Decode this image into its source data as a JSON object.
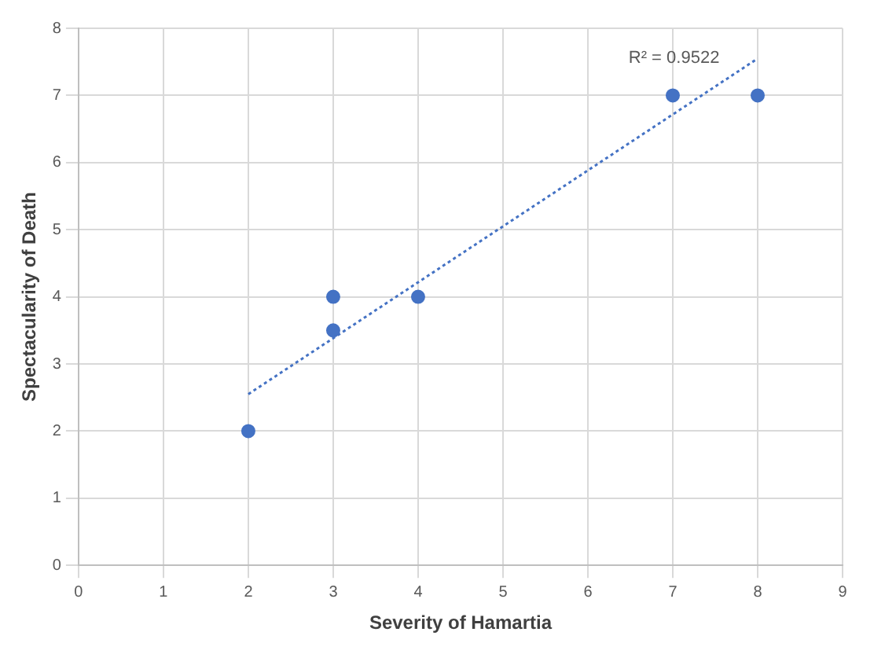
{
  "chart_data": {
    "type": "scatter",
    "xlabel": "Severity of Hamartia",
    "ylabel": "Spectacularity of Death",
    "series": [
      {
        "type": "scatter",
        "color": "#4472c4",
        "x": [
          2,
          3,
          3,
          4,
          7,
          8
        ],
        "values": [
          2,
          4,
          3.5,
          4,
          7,
          7
        ],
        "marker": "circle"
      },
      {
        "type": "line",
        "color": "#4472c4",
        "x": [
          2,
          8
        ],
        "values": [
          2.55,
          7.55
        ],
        "marker": "none",
        "line_style": "dotted"
      }
    ],
    "xlim": [
      0,
      9
    ],
    "xticks": [
      0,
      1,
      2,
      3,
      4,
      5,
      6,
      7,
      8,
      9
    ],
    "ylim": [
      0,
      8
    ],
    "yticks": [
      0,
      1,
      2,
      3,
      4,
      5,
      6,
      7,
      8
    ],
    "grid": true,
    "legend": false,
    "annotations": [
      "R² = 0.9522"
    ]
  }
}
